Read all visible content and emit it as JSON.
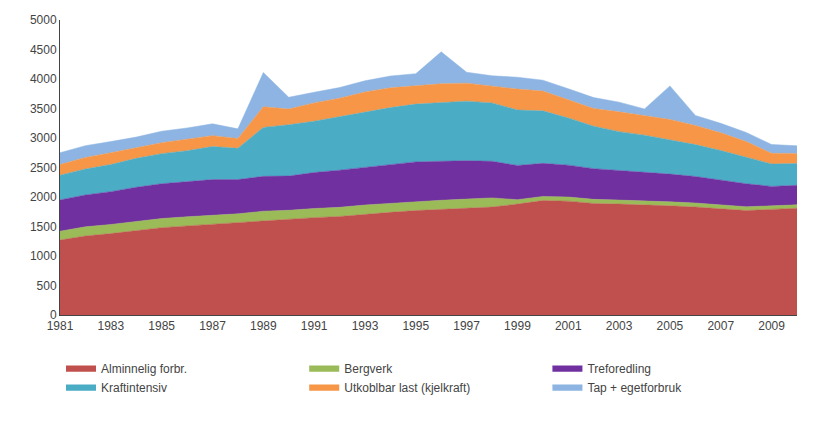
{
  "chart_data": {
    "type": "area",
    "stacked": true,
    "grid": false,
    "legend": "bottom",
    "x": [
      1981,
      1982,
      1983,
      1984,
      1985,
      1986,
      1987,
      1988,
      1989,
      1990,
      1991,
      1992,
      1993,
      1994,
      1995,
      1996,
      1997,
      1998,
      1999,
      2000,
      2001,
      2002,
      2003,
      2004,
      2005,
      2006,
      2007,
      2008,
      2009,
      2010
    ],
    "series": [
      {
        "name": "Alminnelig forbr.",
        "color": "#C0504D",
        "values": [
          1270,
          1340,
          1380,
          1430,
          1480,
          1510,
          1540,
          1560,
          1600,
          1620,
          1650,
          1670,
          1710,
          1740,
          1770,
          1790,
          1810,
          1830,
          1880,
          1940,
          1930,
          1890,
          1880,
          1870,
          1850,
          1830,
          1800,
          1770,
          1790,
          1810
        ]
      },
      {
        "name": "Bergverk",
        "color": "#9BBB59",
        "values": [
          150,
          155,
          155,
          155,
          155,
          155,
          155,
          155,
          160,
          155,
          155,
          155,
          155,
          155,
          155,
          155,
          155,
          155,
          75,
          70,
          70,
          70,
          68,
          68,
          68,
          68,
          68,
          65,
          60,
          58
        ]
      },
      {
        "name": "Treforedling",
        "color": "#7030A0",
        "values": [
          530,
          540,
          555,
          580,
          590,
          590,
          600,
          580,
          590,
          580,
          610,
          630,
          640,
          660,
          670,
          660,
          650,
          620,
          580,
          560,
          540,
          520,
          500,
          490,
          470,
          450,
          420,
          390,
          330,
          330
        ]
      },
      {
        "name": "Kraftintensiv",
        "color": "#4BACC6",
        "values": [
          420,
          440,
          460,
          490,
          510,
          530,
          560,
          530,
          830,
          870,
          870,
          910,
          940,
          960,
          980,
          1000,
          1010,
          990,
          940,
          890,
          800,
          720,
          660,
          620,
          580,
          540,
          500,
          450,
          380,
          370
        ]
      },
      {
        "name": "Utkoblbar last (kjelkraft)",
        "color": "#F79646",
        "values": [
          180,
          195,
          200,
          175,
          185,
          195,
          185,
          165,
          350,
          265,
          310,
          310,
          335,
          335,
          315,
          315,
          305,
          285,
          355,
          335,
          310,
          300,
          335,
          335,
          345,
          325,
          300,
          265,
          180,
          170
        ]
      },
      {
        "name": "Tap + egetforbruk",
        "color": "#8DB4E2",
        "values": [
          200,
          200,
          190,
          185,
          195,
          190,
          200,
          165,
          580,
          200,
          180,
          180,
          190,
          200,
          200,
          540,
          185,
          175,
          200,
          185,
          185,
          185,
          165,
          110,
          570,
          170,
          160,
          155,
          150,
          130
        ]
      }
    ],
    "xlim": [
      1981,
      2010
    ],
    "xticks": [
      1981,
      1983,
      1985,
      1987,
      1989,
      1991,
      1993,
      1995,
      1997,
      1999,
      2001,
      2003,
      2005,
      2007,
      2009
    ],
    "ylim": [
      0,
      5000
    ],
    "yticks": [
      0,
      500,
      1000,
      1500,
      2000,
      2500,
      3000,
      3500,
      4000,
      4500,
      5000
    ]
  }
}
